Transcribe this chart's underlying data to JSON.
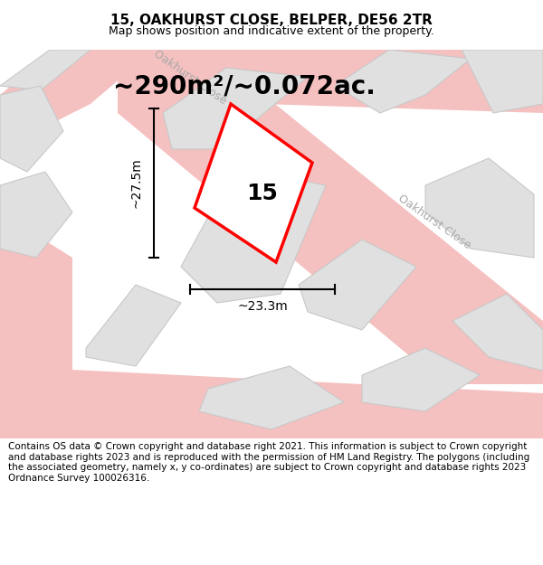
{
  "title": "15, OAKHURST CLOSE, BELPER, DE56 2TR",
  "subtitle": "Map shows position and indicative extent of the property.",
  "area_text": "~290m²/~0.072ac.",
  "property_number": "15",
  "dim_width": "~23.3m",
  "dim_height": "~27.5m",
  "footer_text": "Contains OS data © Crown copyright and database right 2021. This information is subject to Crown copyright and database rights 2023 and is reproduced with the permission of HM Land Registry. The polygons (including the associated geometry, namely x, y co-ordinates) are subject to Crown copyright and database rights 2023 Ordnance Survey 100026316.",
  "bg_color": "#f0f0f0",
  "map_bg": "#f5f5f5",
  "road_color": "#f5c0c0",
  "road_border": "#e8a0a0",
  "building_fill": "#e0e0e0",
  "building_stroke": "#c8c8c8",
  "plot_color": "#ff0000",
  "road_label_color": "#aaaaaa",
  "title_fontsize": 11,
  "subtitle_fontsize": 9,
  "area_fontsize": 20,
  "property_num_fontsize": 18,
  "dim_fontsize": 10,
  "footer_fontsize": 7.5
}
